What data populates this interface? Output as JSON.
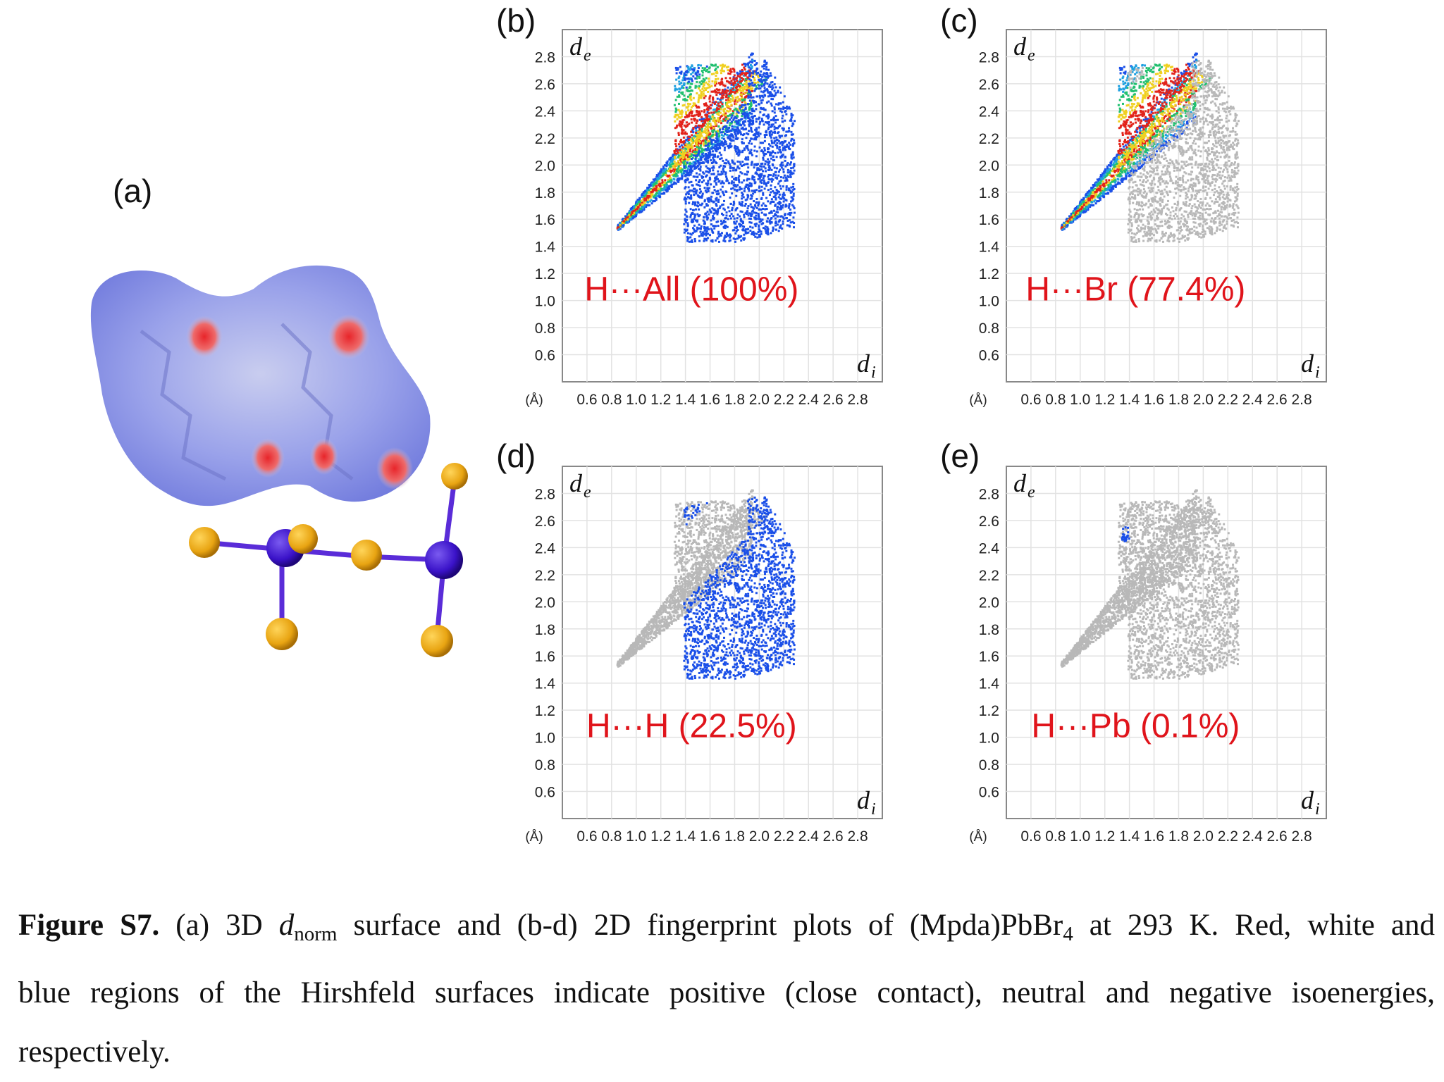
{
  "panels": {
    "a": "(a)",
    "b": "(b)",
    "c": "(c)",
    "d": "(d)",
    "e": "(e)"
  },
  "colors": {
    "label_red": "#e0141b",
    "fingerprint_blue": "#1a4fe8",
    "fingerprint_grey": "#b8b8b8",
    "surface_blue": "#8f98e8",
    "contact_red": "#e8252a",
    "br_atom": "#e8a412",
    "pb_atom": "#3a12c8",
    "bond_purple": "#5a2cd8"
  },
  "chart_data": [
    {
      "type": "scatter",
      "panel": "(b)",
      "annotation": "H···All (100%)",
      "xlabel": "d",
      "xlabel_sub": "i",
      "ylabel": "d",
      "ylabel_sub": "e",
      "unit": "(Å)",
      "xlim": [
        0.4,
        3.0
      ],
      "ylim": [
        0.4,
        3.0
      ],
      "x_ticks": [
        "0.6",
        "0.8",
        "1.0",
        "1.2",
        "1.4",
        "1.6",
        "1.8",
        "2.0",
        "2.2",
        "2.4",
        "2.6",
        "2.8"
      ],
      "y_ticks": [
        "0.6",
        "0.8",
        "1.0",
        "1.2",
        "1.4",
        "1.6",
        "1.8",
        "2.0",
        "2.2",
        "2.4",
        "2.6",
        "2.8"
      ],
      "grid": true,
      "highlight": "all"
    },
    {
      "type": "scatter",
      "panel": "(c)",
      "annotation": "H···Br (77.4%)",
      "xlabel": "d",
      "xlabel_sub": "i",
      "ylabel": "d",
      "ylabel_sub": "e",
      "unit": "(Å)",
      "xlim": [
        0.4,
        3.0
      ],
      "ylim": [
        0.4,
        3.0
      ],
      "x_ticks": [
        "0.6",
        "0.8",
        "1.0",
        "1.2",
        "1.4",
        "1.6",
        "1.8",
        "2.0",
        "2.2",
        "2.4",
        "2.6",
        "2.8"
      ],
      "y_ticks": [
        "0.6",
        "0.8",
        "1.0",
        "1.2",
        "1.4",
        "1.6",
        "1.8",
        "2.0",
        "2.2",
        "2.4",
        "2.6",
        "2.8"
      ],
      "grid": true,
      "highlight": "spike"
    },
    {
      "type": "scatter",
      "panel": "(d)",
      "annotation": "H···H (22.5%)",
      "xlabel": "d",
      "xlabel_sub": "i",
      "ylabel": "d",
      "ylabel_sub": "e",
      "unit": "(Å)",
      "xlim": [
        0.4,
        3.0
      ],
      "ylim": [
        0.4,
        3.0
      ],
      "x_ticks": [
        "0.6",
        "0.8",
        "1.0",
        "1.2",
        "1.4",
        "1.6",
        "1.8",
        "2.0",
        "2.2",
        "2.4",
        "2.6",
        "2.8"
      ],
      "y_ticks": [
        "0.6",
        "0.8",
        "1.0",
        "1.2",
        "1.4",
        "1.6",
        "1.8",
        "2.0",
        "2.2",
        "2.4",
        "2.6",
        "2.8"
      ],
      "grid": true,
      "highlight": "body"
    },
    {
      "type": "scatter",
      "panel": "(e)",
      "annotation": "H···Pb (0.1%)",
      "xlabel": "d",
      "xlabel_sub": "i",
      "ylabel": "d",
      "ylabel_sub": "e",
      "unit": "(Å)",
      "xlim": [
        0.4,
        3.0
      ],
      "ylim": [
        0.4,
        3.0
      ],
      "x_ticks": [
        "0.6",
        "0.8",
        "1.0",
        "1.2",
        "1.4",
        "1.6",
        "1.8",
        "2.0",
        "2.2",
        "2.4",
        "2.6",
        "2.8"
      ],
      "y_ticks": [
        "0.6",
        "0.8",
        "1.0",
        "1.2",
        "1.4",
        "1.6",
        "1.8",
        "2.0",
        "2.2",
        "2.4",
        "2.6",
        "2.8"
      ],
      "grid": true,
      "highlight": "tiny"
    }
  ],
  "caption": {
    "label": "Figure S7.",
    "p1": " (a) 3D ",
    "d": "d",
    "norm": "norm",
    "p2": " surface and (b-d) 2D fingerprint plots of (Mpda)PbBr",
    "four": "4",
    "p3": " at 293 K. Red, white and",
    "line2": "blue regions of the Hirshfeld surfaces indicate positive (close contact), neutral and negative isoenergies,",
    "line3": "respectively."
  }
}
